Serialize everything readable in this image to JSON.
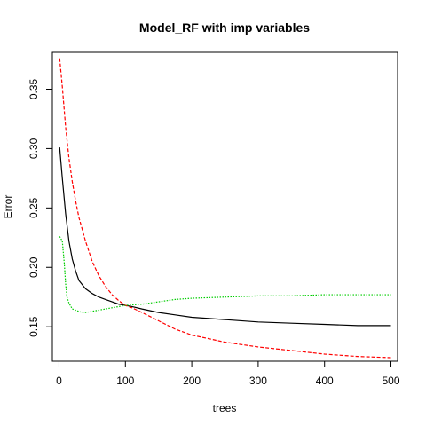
{
  "chart_data": {
    "type": "line",
    "title": "Model_RF with imp variables",
    "xlabel": "trees",
    "ylabel": "Error",
    "xlim": [
      -10,
      510
    ],
    "ylim": [
      0.121,
      0.381
    ],
    "x_ticks": [
      0,
      100,
      200,
      300,
      400,
      500
    ],
    "x_tick_labels": [
      "0",
      "100",
      "200",
      "300",
      "400",
      "500"
    ],
    "y_ticks": [
      0.15,
      0.2,
      0.25,
      0.3,
      0.35
    ],
    "y_tick_labels": [
      "0.15",
      "0.20",
      "0.25",
      "0.30",
      "0.35"
    ],
    "grid": false,
    "legend": "none",
    "series": [
      {
        "color": "#000000",
        "dash": "solid",
        "x": [
          1,
          5,
          10,
          15,
          20,
          25,
          30,
          40,
          50,
          60,
          70,
          80,
          90,
          100,
          110,
          125,
          150,
          175,
          200,
          250,
          300,
          350,
          400,
          450,
          500
        ],
        "y": [
          0.301,
          0.275,
          0.245,
          0.222,
          0.207,
          0.197,
          0.189,
          0.182,
          0.178,
          0.175,
          0.173,
          0.171,
          0.169,
          0.168,
          0.167,
          0.165,
          0.162,
          0.16,
          0.158,
          0.156,
          0.154,
          0.153,
          0.152,
          0.151,
          0.151
        ]
      },
      {
        "color": "#ff0000",
        "dash": "dashed",
        "x": [
          1,
          5,
          10,
          15,
          20,
          25,
          30,
          40,
          50,
          60,
          70,
          80,
          90,
          100,
          110,
          125,
          150,
          175,
          200,
          250,
          300,
          350,
          400,
          450,
          500
        ],
        "y": [
          0.376,
          0.352,
          0.318,
          0.292,
          0.272,
          0.256,
          0.242,
          0.222,
          0.205,
          0.193,
          0.184,
          0.177,
          0.172,
          0.168,
          0.166,
          0.162,
          0.155,
          0.148,
          0.143,
          0.137,
          0.133,
          0.13,
          0.127,
          0.125,
          0.124
        ]
      },
      {
        "color": "#00cd00",
        "dash": "dotted",
        "x": [
          1,
          5,
          8,
          10,
          12,
          15,
          18,
          20,
          25,
          30,
          35,
          40,
          50,
          60,
          70,
          80,
          90,
          100,
          125,
          150,
          175,
          200,
          250,
          300,
          350,
          400,
          450,
          500
        ],
        "y": [
          0.226,
          0.222,
          0.203,
          0.186,
          0.175,
          0.17,
          0.167,
          0.165,
          0.164,
          0.163,
          0.162,
          0.162,
          0.163,
          0.164,
          0.165,
          0.166,
          0.167,
          0.168,
          0.169,
          0.171,
          0.173,
          0.174,
          0.175,
          0.176,
          0.176,
          0.177,
          0.177,
          0.177
        ]
      }
    ]
  }
}
